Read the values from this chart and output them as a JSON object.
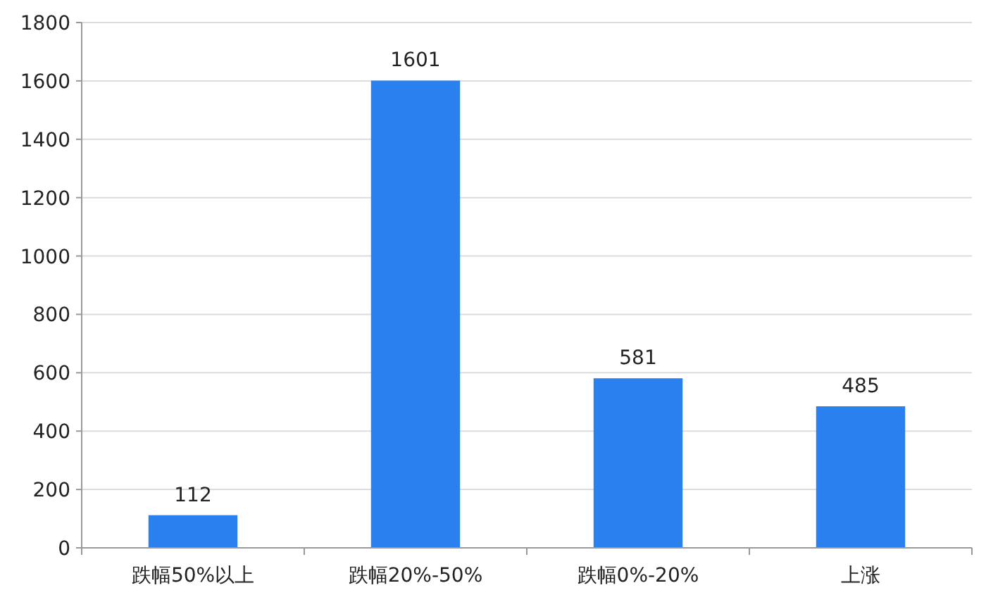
{
  "chart_data": {
    "type": "bar",
    "categories": [
      "跌幅50%以上",
      "跌幅20%-50%",
      "跌幅0%-20%",
      "上涨"
    ],
    "values": [
      112,
      1601,
      581,
      485
    ],
    "color": "#2b80f0",
    "ylim": [
      0,
      1800
    ],
    "yticks": [
      0,
      200,
      400,
      600,
      800,
      1000,
      1200,
      1400,
      1600,
      1800
    ],
    "grid": "y",
    "data_labels": true
  }
}
